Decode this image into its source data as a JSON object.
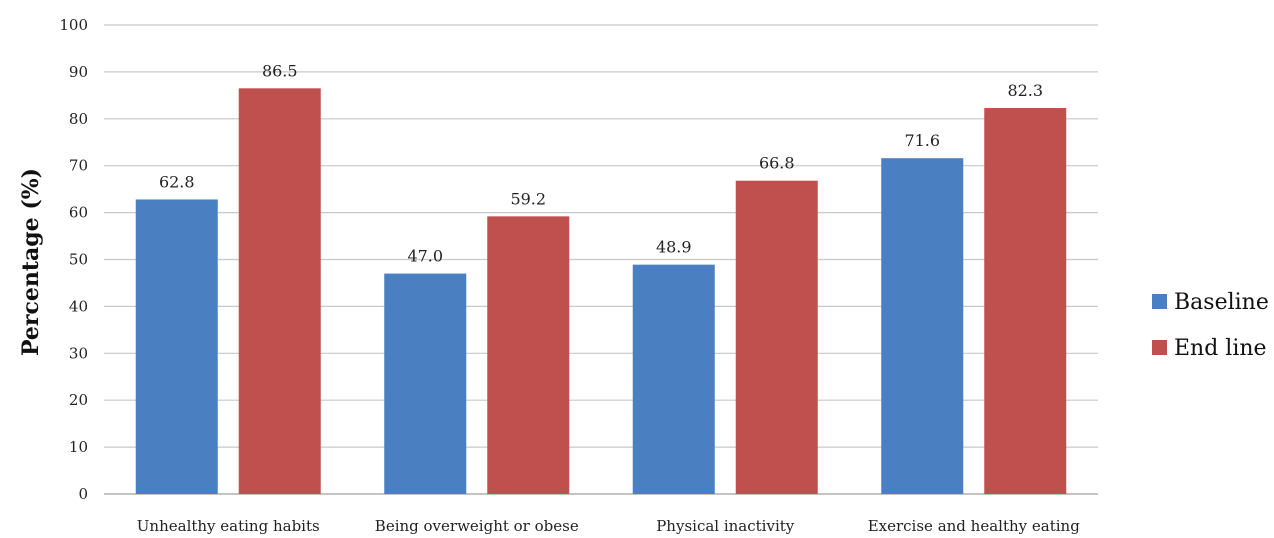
{
  "chart_data": {
    "type": "bar",
    "categories": [
      "Unhealthy eating habits",
      "Being overweight or obese",
      "Physical inactivity",
      "Exercise and healthy eating"
    ],
    "series": [
      {
        "name": "Baseline",
        "values": [
          62.8,
          47.0,
          48.9,
          71.6
        ],
        "color": "#4a7fc1",
        "value_labels": [
          "62.8",
          "47.0",
          "48.9",
          "71.6"
        ]
      },
      {
        "name": "End line",
        "values": [
          86.5,
          59.2,
          66.8,
          82.3
        ],
        "color": "#c0504d",
        "value_labels": [
          "86.5",
          "59.2",
          "66.8",
          "82.3"
        ]
      }
    ],
    "title": "",
    "xlabel": "",
    "ylabel": "Percentage (%)",
    "ylim": [
      0,
      100
    ],
    "yticks": [
      0,
      10,
      20,
      30,
      40,
      50,
      60,
      70,
      80,
      90,
      100
    ],
    "grid": true,
    "legend_position": "right"
  }
}
